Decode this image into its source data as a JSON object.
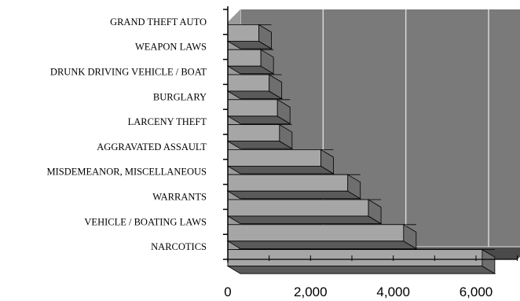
{
  "chart_data": {
    "type": "bar",
    "orientation": "horizontal",
    "style": "3d",
    "title": "",
    "xlabel": "",
    "ylabel": "",
    "categories": [
      "GRAND THEFT AUTO",
      "WEAPON LAWS",
      "DRUNK DRIVING VEHICLE / BOAT",
      "BURGLARY",
      "LARCENY THEFT",
      "AGGRAVATED ASSAULT",
      "MISDEMEANOR, MISCELLANEOUS",
      "WARRANTS",
      "VEHICLE / BOATING LAWS",
      "NARCOTICS"
    ],
    "values": [
      750,
      800,
      1000,
      1200,
      1250,
      2250,
      2900,
      3400,
      4250,
      6150
    ],
    "xlim": [
      0,
      7000
    ],
    "x_ticks": [
      0,
      2000,
      4000,
      6000
    ],
    "x_tick_labels": [
      "0",
      "2,000",
      "4,000",
      "6,000"
    ],
    "grid": true,
    "colors": {
      "wall": "#7a7a7a",
      "floor": "#4a4a4a",
      "bar_front": "#a6a6a6",
      "bar_top": "#c8c8c8",
      "bar_side": "#5a5a5a",
      "grid": "#d8d8d8"
    }
  }
}
